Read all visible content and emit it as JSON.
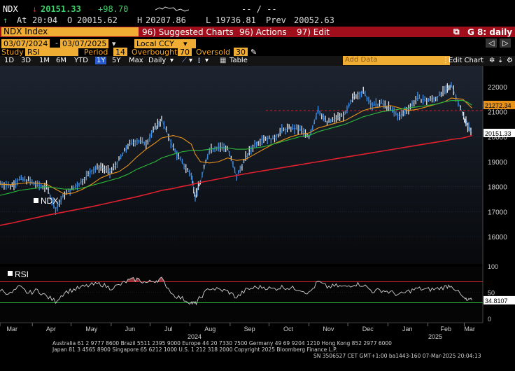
{
  "quote": {
    "ticker": "NDX",
    "arrow": "↓",
    "last": "20151.33",
    "change": "+98.70",
    "dashes": "-- / --",
    "time_label": "At",
    "time": "20:04",
    "open_label": "O",
    "open": "20015.62",
    "high_label": "H",
    "high": "20207.86",
    "low_label": "L",
    "low": "19736.81",
    "prev_label": "Prev",
    "prev": "20052.63"
  },
  "menu": {
    "security": "NDX Index",
    "suggested": "96) Suggested Charts",
    "actions": "96) Actions",
    "edit": "97) Edit",
    "page": "G 8: daily",
    "prev_icon": "previous-page-icon",
    "next_icon": "next-page-icon"
  },
  "params": {
    "start_date": "03/07/2024",
    "end_date": "03/07/2025",
    "currency": "Local CCY",
    "study_label": "Study",
    "study_value": "RSI",
    "period_label": "Period",
    "period_value": "14",
    "overbought_label": "Overbought",
    "overbought_value": "70",
    "oversold_label": "Oversold",
    "oversold_value": "30"
  },
  "toolbar": {
    "ranges": [
      "1D",
      "3D",
      "1M",
      "6M",
      "YTD",
      "1Y",
      "5Y",
      "Max"
    ],
    "active_range": "1Y",
    "frequency": "Daily",
    "table_label": "Table",
    "add_data_placeholder": "Add Data",
    "edit_chart": "Edit Chart"
  },
  "colors": {
    "price": "#3d8fe8",
    "ma_fast": "#e8921a",
    "ma_mid": "#2dbb3c",
    "ma_slow": "#e0202e",
    "rsi": "#d0d0d0",
    "overbought": "#c8262c",
    "oversold": "#2cb53a",
    "header_bar": "#a00e1c",
    "accent": "#f7a51d"
  },
  "chart_data": [
    {
      "type": "line",
      "legend": "NDX",
      "x": [
        "2024-03-07",
        "2024-03-15",
        "2024-03-22",
        "2024-03-29",
        "2024-04-05",
        "2024-04-12",
        "2024-04-19",
        "2024-04-26",
        "2024-05-03",
        "2024-05-10",
        "2024-05-17",
        "2024-05-24",
        "2024-05-31",
        "2024-06-07",
        "2024-06-14",
        "2024-06-21",
        "2024-06-28",
        "2024-07-05",
        "2024-07-10",
        "2024-07-19",
        "2024-07-26",
        "2024-08-02",
        "2024-08-05",
        "2024-08-09",
        "2024-08-16",
        "2024-08-23",
        "2024-08-30",
        "2024-09-06",
        "2024-09-13",
        "2024-09-20",
        "2024-09-27",
        "2024-10-04",
        "2024-10-11",
        "2024-10-18",
        "2024-10-25",
        "2024-11-01",
        "2024-11-08",
        "2024-11-15",
        "2024-11-22",
        "2024-11-29",
        "2024-12-06",
        "2024-12-13",
        "2024-12-20",
        "2024-12-27",
        "2025-01-03",
        "2025-01-10",
        "2025-01-17",
        "2025-01-24",
        "2025-01-31",
        "2025-02-07",
        "2025-02-14",
        "2025-02-19",
        "2025-02-28",
        "2025-03-03",
        "2025-03-07"
      ],
      "series": [
        {
          "values": [
            18150,
            18020,
            18300,
            18250,
            18050,
            18000,
            17100,
            17700,
            17950,
            18250,
            18650,
            18800,
            18550,
            19050,
            19650,
            19850,
            19750,
            20350,
            20680,
            19550,
            18950,
            18450,
            17600,
            18200,
            19500,
            19600,
            19550,
            18400,
            19150,
            19700,
            19950,
            19900,
            20250,
            20350,
            20300,
            19950,
            21100,
            20550,
            20750,
            20900,
            21650,
            21800,
            21250,
            21350,
            21100,
            20800,
            21150,
            21550,
            21450,
            21550,
            21800,
            22100,
            20900,
            20500,
            20151.33
          ]
        }
      ],
      "moving_averages": [
        {
          "values": [
            18100,
            18080,
            18120,
            18160,
            18140,
            18100,
            17900,
            17700,
            17750,
            17900,
            18100,
            18350,
            18500,
            18600,
            18850,
            19200,
            19500,
            19750,
            19950,
            20050,
            19950,
            19700,
            19300,
            19000,
            18950,
            19000,
            19150,
            19050,
            19100,
            19300,
            19500,
            19700,
            19850,
            20000,
            20100,
            20150,
            20350,
            20450,
            20550,
            20650,
            20850,
            21050,
            21150,
            21200,
            21250,
            21150,
            21050,
            21100,
            21200,
            21300,
            21400,
            21550,
            21500,
            21350,
            21150
          ]
        },
        {
          "values": [
            17650,
            17750,
            17850,
            17900,
            17950,
            18000,
            17950,
            17900,
            17900,
            17950,
            18050,
            18150,
            18250,
            18350,
            18500,
            18700,
            18850,
            19000,
            19150,
            19300,
            19400,
            19450,
            19450,
            19450,
            19500,
            19550,
            19550,
            19500,
            19500,
            19550,
            19600,
            19700,
            19800,
            19900,
            20000,
            20050,
            20200,
            20300,
            20400,
            20500,
            20650,
            20800,
            20900,
            21000,
            21050,
            21100,
            21150,
            21200,
            21250,
            21300,
            21400,
            21450,
            21450,
            21400,
            21270
          ]
        },
        {
          "values": [
            16450,
            16530,
            16610,
            16690,
            16770,
            16850,
            16920,
            16990,
            17060,
            17130,
            17200,
            17280,
            17360,
            17440,
            17520,
            17600,
            17690,
            17780,
            17850,
            17930,
            18010,
            18080,
            18120,
            18170,
            18240,
            18310,
            18380,
            18450,
            18520,
            18580,
            18640,
            18700,
            18760,
            18820,
            18880,
            18940,
            19000,
            19060,
            19120,
            19180,
            19240,
            19300,
            19360,
            19420,
            19480,
            19540,
            19600,
            19660,
            19720,
            19780,
            19840,
            19890,
            19950,
            19990,
            20050
          ]
        }
      ],
      "reference_line": 21050,
      "last_value": "20151.33",
      "ma_value": "21272.34",
      "ylim": [
        15400,
        22600
      ],
      "yticks": [
        "16000",
        "17000",
        "18000",
        "19000",
        "20000",
        "21000",
        "22000"
      ]
    },
    {
      "type": "line",
      "legend": "RSI",
      "values": [
        55,
        47,
        60,
        48,
        54,
        42,
        33,
        50,
        55,
        60,
        64,
        66,
        58,
        63,
        72,
        75,
        68,
        72,
        75,
        45,
        38,
        30,
        28,
        40,
        58,
        55,
        52,
        40,
        54,
        59,
        60,
        56,
        60,
        58,
        56,
        48,
        70,
        60,
        62,
        60,
        66,
        64,
        52,
        54,
        50,
        45,
        52,
        57,
        55,
        56,
        60,
        64,
        40,
        34,
        34.81
      ],
      "last_value": "34.8107",
      "ylim": [
        0,
        100
      ],
      "yticks": [
        "0",
        "50",
        "100"
      ],
      "overbought": 70,
      "oversold": 30
    }
  ],
  "xaxis": {
    "months": [
      "Mar",
      "Apr",
      "May",
      "Jun",
      "Jul",
      "Aug",
      "Sep",
      "Oct",
      "Nov",
      "Dec",
      "Jan",
      "Feb",
      "Mar"
    ],
    "years": [
      "2024",
      "2025"
    ]
  },
  "footer": {
    "line1": "Australia 61 2 9777 8600 Brazil 5511 2395 9000 Europe 44 20 7330 7500 Germany 49 69 9204 1210 Hong Kong 852 2977 6000",
    "line2": "Japan 81 3 4565 8900          Singapore 65 6212 1000          U.S. 1 212 318 2000          Copyright 2025 Bloomberg Finance L.P.",
    "line3": "SN 3506527 CET  GMT+1:00 ba1443-160 07-Mar-2025 20:04:13"
  }
}
